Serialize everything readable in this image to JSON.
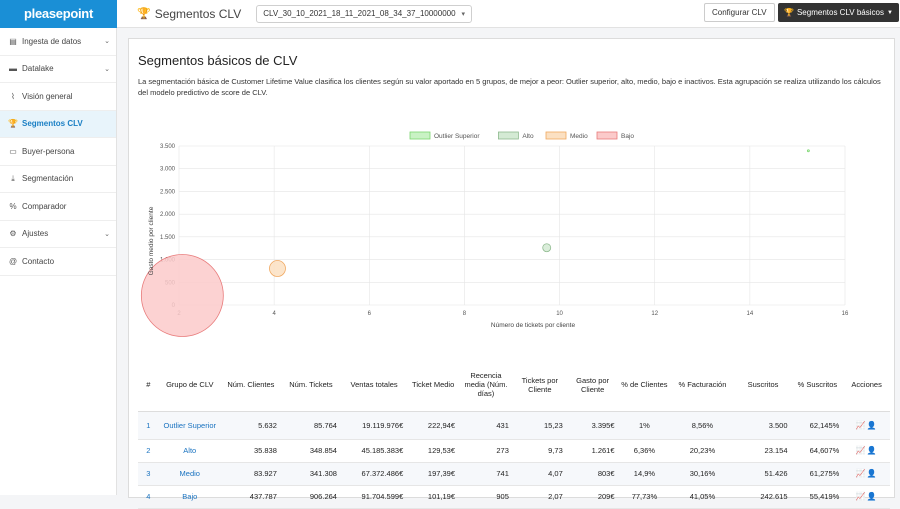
{
  "app": {
    "logo": "pleasepoint"
  },
  "header": {
    "title": "Segmentos CLV",
    "model_select": "CLV_30_10_2021_18_11_2021_08_34_37_10000000",
    "config_button": "Configurar CLV",
    "segments_button": "Segmentos CLV básicos"
  },
  "sidebar": {
    "items": [
      {
        "label": "Ingesta de datos",
        "icon": "book-icon",
        "expandable": true
      },
      {
        "label": "Datalake",
        "icon": "database-icon",
        "expandable": true
      },
      {
        "label": "Visión general",
        "icon": "chart-icon",
        "expandable": false
      },
      {
        "label": "Segmentos CLV",
        "icon": "trophy-icon",
        "expandable": false,
        "active": true
      },
      {
        "label": "Buyer-persona",
        "icon": "id-card-icon",
        "expandable": false
      },
      {
        "label": "Segmentación",
        "icon": "download-icon",
        "expandable": false
      },
      {
        "label": "Comparador",
        "icon": "percent-icon",
        "expandable": false
      },
      {
        "label": "Ajustes",
        "icon": "gear-icon",
        "expandable": true
      },
      {
        "label": "Contacto",
        "icon": "at-icon",
        "expandable": false
      }
    ]
  },
  "main": {
    "title": "Segmentos básicos de CLV",
    "description": "La segmentación básica de Customer Lifetime Value clasifica los clientes según su valor aportado en 5 grupos, de mejor a peor: Outlier superior, alto, medio, bajo e inactivos. Esta agrupación se realiza utilizando los cálculos del modelo predictivo de score de CLV."
  },
  "chart_data": {
    "type": "scatter",
    "xlabel": "Número de tickets por cliente",
    "ylabel": "Gasto medio por cliente",
    "xlim": [
      2,
      16
    ],
    "ylim": [
      0,
      3500
    ],
    "xticks": [
      2,
      4,
      6,
      8,
      10,
      12,
      14,
      16
    ],
    "yticks": [
      0,
      500,
      1000,
      1500,
      2000,
      2500,
      3000,
      3500
    ],
    "ytick_labels": [
      "0",
      "500",
      "1.000",
      "1.500",
      "2.000",
      "2.500",
      "3.000",
      "3.500"
    ],
    "legend_position": "top-center",
    "series": [
      {
        "name": "Outlier Superior",
        "x": 15.23,
        "y": 3395,
        "clients": 5632,
        "fill": "#c9f2c4",
        "stroke": "#7bd66f"
      },
      {
        "name": "Alto",
        "x": 9.73,
        "y": 1261,
        "clients": 35838,
        "fill": "#d4ead4",
        "stroke": "#8fba8f"
      },
      {
        "name": "Medio",
        "x": 4.07,
        "y": 803,
        "clients": 83927,
        "fill": "#fbe0c2",
        "stroke": "#f0a860"
      },
      {
        "name": "Bajo",
        "x": 2.07,
        "y": 209,
        "clients": 437787,
        "fill": "#fbcaca",
        "stroke": "#e87a7a"
      }
    ]
  },
  "table": {
    "headers": [
      "#",
      "Grupo de CLV",
      "Núm. Clientes",
      "Núm. Tickets",
      "Ventas totales",
      "Ticket Medio",
      "Recencia media (Núm. días)",
      "Tickets por Cliente",
      "Gasto por Cliente",
      "% de Clientes",
      "% Facturación",
      "Suscritos",
      "% Suscritos",
      "Acciones"
    ],
    "rows": [
      {
        "n": "1",
        "group": "Outlier Superior",
        "clients": "5.632",
        "tickets": "85.764",
        "sales": "19.119.976€",
        "avg_ticket": "222,94€",
        "recency": "431",
        "tpc": "15,23",
        "spc": "3.395€",
        "pct_clients": "1%",
        "pct_billing": "8,56%",
        "subscribed": "3.500",
        "pct_subscribed": "62,145%"
      },
      {
        "n": "2",
        "group": "Alto",
        "clients": "35.838",
        "tickets": "348.854",
        "sales": "45.185.383€",
        "avg_ticket": "129,53€",
        "recency": "273",
        "tpc": "9,73",
        "spc": "1.261€",
        "pct_clients": "6,36%",
        "pct_billing": "20,23%",
        "subscribed": "23.154",
        "pct_subscribed": "64,607%"
      },
      {
        "n": "3",
        "group": "Medio",
        "clients": "83.927",
        "tickets": "341.308",
        "sales": "67.372.486€",
        "avg_ticket": "197,39€",
        "recency": "741",
        "tpc": "4,07",
        "spc": "803€",
        "pct_clients": "14,9%",
        "pct_billing": "30,16%",
        "subscribed": "51.426",
        "pct_subscribed": "61,275%"
      },
      {
        "n": "4",
        "group": "Bajo",
        "clients": "437.787",
        "tickets": "906.264",
        "sales": "91.704.599€",
        "avg_ticket": "101,19€",
        "recency": "905",
        "tpc": "2,07",
        "spc": "209€",
        "pct_clients": "77,73%",
        "pct_billing": "41,05%",
        "subscribed": "242.615",
        "pct_subscribed": "55,419%"
      }
    ]
  }
}
